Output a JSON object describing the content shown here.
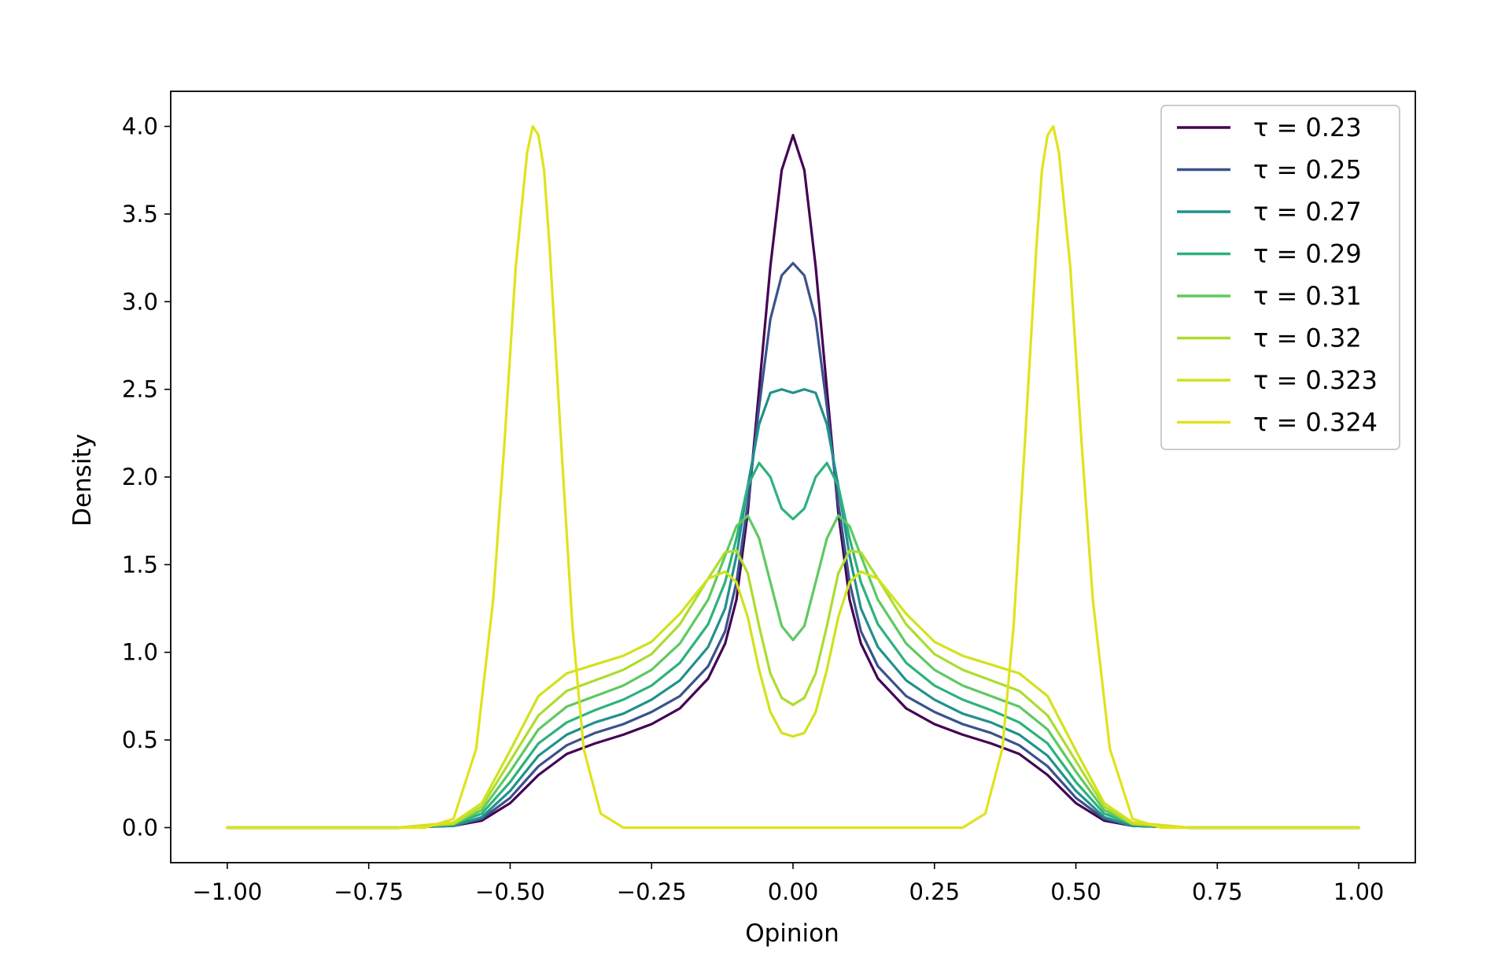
{
  "chart_data": {
    "type": "line",
    "xlabel": "Opinion",
    "ylabel": "Density",
    "xlim": [
      -1.1,
      1.1
    ],
    "ylim": [
      -0.2,
      4.2
    ],
    "xticks": [
      -1.0,
      -0.75,
      -0.5,
      -0.25,
      0.0,
      0.25,
      0.5,
      0.75,
      1.0
    ],
    "xtick_labels": [
      "−1.00",
      "−0.75",
      "−0.50",
      "−0.25",
      "0.00",
      "0.25",
      "0.50",
      "0.75",
      "1.00"
    ],
    "yticks": [
      0.0,
      0.5,
      1.0,
      1.5,
      2.0,
      2.5,
      3.0,
      3.5,
      4.0
    ],
    "ytick_labels": [
      "0.0",
      "0.5",
      "1.0",
      "1.5",
      "2.0",
      "2.5",
      "3.0",
      "3.5",
      "4.0"
    ],
    "grid": false,
    "legend_position": "top-right",
    "series": [
      {
        "name": "τ = 0.23",
        "color": "#440154",
        "x": [
          -1.0,
          -0.7,
          -0.6,
          -0.55,
          -0.5,
          -0.45,
          -0.4,
          -0.35,
          -0.3,
          -0.25,
          -0.2,
          -0.15,
          -0.12,
          -0.1,
          -0.08,
          -0.06,
          -0.04,
          -0.02,
          0.0,
          0.02,
          0.04,
          0.06,
          0.08,
          0.1,
          0.12,
          0.15,
          0.2,
          0.25,
          0.3,
          0.35,
          0.4,
          0.45,
          0.5,
          0.55,
          0.6,
          0.7,
          1.0
        ],
        "y": [
          0.0,
          0.0,
          0.01,
          0.04,
          0.14,
          0.3,
          0.42,
          0.48,
          0.53,
          0.59,
          0.68,
          0.85,
          1.05,
          1.3,
          1.8,
          2.5,
          3.2,
          3.75,
          3.95,
          3.75,
          3.2,
          2.5,
          1.8,
          1.3,
          1.05,
          0.85,
          0.68,
          0.59,
          0.53,
          0.48,
          0.42,
          0.3,
          0.14,
          0.04,
          0.01,
          0.0,
          0.0
        ]
      },
      {
        "name": "τ = 0.25",
        "color": "#3b528b",
        "x": [
          -1.0,
          -0.7,
          -0.6,
          -0.55,
          -0.5,
          -0.45,
          -0.4,
          -0.35,
          -0.3,
          -0.25,
          -0.2,
          -0.15,
          -0.12,
          -0.1,
          -0.08,
          -0.06,
          -0.04,
          -0.02,
          0.0,
          0.02,
          0.04,
          0.06,
          0.08,
          0.1,
          0.12,
          0.15,
          0.2,
          0.25,
          0.3,
          0.35,
          0.4,
          0.45,
          0.5,
          0.55,
          0.6,
          0.7,
          1.0
        ],
        "y": [
          0.0,
          0.0,
          0.01,
          0.05,
          0.17,
          0.35,
          0.47,
          0.54,
          0.59,
          0.66,
          0.75,
          0.92,
          1.12,
          1.4,
          1.85,
          2.4,
          2.9,
          3.15,
          3.22,
          3.15,
          2.9,
          2.4,
          1.85,
          1.4,
          1.12,
          0.92,
          0.75,
          0.66,
          0.59,
          0.54,
          0.47,
          0.35,
          0.17,
          0.05,
          0.01,
          0.0,
          0.0
        ]
      },
      {
        "name": "τ = 0.27",
        "color": "#21918c",
        "x": [
          -1.0,
          -0.7,
          -0.6,
          -0.55,
          -0.5,
          -0.45,
          -0.4,
          -0.35,
          -0.3,
          -0.25,
          -0.2,
          -0.15,
          -0.12,
          -0.1,
          -0.08,
          -0.06,
          -0.04,
          -0.02,
          0.0,
          0.02,
          0.04,
          0.06,
          0.08,
          0.1,
          0.12,
          0.15,
          0.2,
          0.25,
          0.3,
          0.35,
          0.4,
          0.45,
          0.5,
          0.55,
          0.6,
          0.7,
          1.0
        ],
        "y": [
          0.0,
          0.0,
          0.01,
          0.06,
          0.21,
          0.41,
          0.53,
          0.6,
          0.65,
          0.73,
          0.84,
          1.03,
          1.25,
          1.55,
          1.95,
          2.3,
          2.48,
          2.5,
          2.48,
          2.5,
          2.48,
          2.3,
          1.95,
          1.55,
          1.25,
          1.03,
          0.84,
          0.73,
          0.65,
          0.6,
          0.53,
          0.41,
          0.21,
          0.06,
          0.01,
          0.0,
          0.0
        ]
      },
      {
        "name": "τ = 0.29",
        "color": "#2db27d",
        "x": [
          -1.0,
          -0.7,
          -0.6,
          -0.55,
          -0.5,
          -0.45,
          -0.4,
          -0.35,
          -0.3,
          -0.25,
          -0.2,
          -0.15,
          -0.12,
          -0.1,
          -0.08,
          -0.06,
          -0.04,
          -0.02,
          0.0,
          0.02,
          0.04,
          0.06,
          0.08,
          0.1,
          0.12,
          0.15,
          0.2,
          0.25,
          0.3,
          0.35,
          0.4,
          0.45,
          0.5,
          0.55,
          0.6,
          0.7,
          1.0
        ],
        "y": [
          0.0,
          0.0,
          0.02,
          0.08,
          0.26,
          0.48,
          0.6,
          0.67,
          0.73,
          0.81,
          0.94,
          1.16,
          1.4,
          1.65,
          1.95,
          2.08,
          2.0,
          1.82,
          1.76,
          1.82,
          2.0,
          2.08,
          1.95,
          1.65,
          1.4,
          1.16,
          0.94,
          0.81,
          0.73,
          0.67,
          0.6,
          0.48,
          0.26,
          0.08,
          0.02,
          0.0,
          0.0
        ]
      },
      {
        "name": "τ = 0.31",
        "color": "#5ec962",
        "x": [
          -1.0,
          -0.7,
          -0.6,
          -0.55,
          -0.5,
          -0.45,
          -0.4,
          -0.35,
          -0.3,
          -0.25,
          -0.2,
          -0.15,
          -0.12,
          -0.1,
          -0.08,
          -0.06,
          -0.04,
          -0.02,
          0.0,
          0.02,
          0.04,
          0.06,
          0.08,
          0.1,
          0.12,
          0.15,
          0.2,
          0.25,
          0.3,
          0.35,
          0.4,
          0.45,
          0.5,
          0.55,
          0.6,
          0.7,
          1.0
        ],
        "y": [
          0.0,
          0.0,
          0.02,
          0.1,
          0.32,
          0.56,
          0.69,
          0.75,
          0.81,
          0.9,
          1.05,
          1.3,
          1.55,
          1.72,
          1.78,
          1.65,
          1.4,
          1.15,
          1.07,
          1.15,
          1.4,
          1.65,
          1.78,
          1.72,
          1.55,
          1.3,
          1.05,
          0.9,
          0.81,
          0.75,
          0.69,
          0.56,
          0.32,
          0.1,
          0.02,
          0.0,
          0.0
        ]
      },
      {
        "name": "τ = 0.32",
        "color": "#addc30",
        "x": [
          -1.0,
          -0.7,
          -0.6,
          -0.55,
          -0.5,
          -0.45,
          -0.4,
          -0.35,
          -0.3,
          -0.25,
          -0.2,
          -0.15,
          -0.12,
          -0.1,
          -0.08,
          -0.06,
          -0.04,
          -0.02,
          0.0,
          0.02,
          0.04,
          0.06,
          0.08,
          0.1,
          0.12,
          0.15,
          0.2,
          0.25,
          0.3,
          0.35,
          0.4,
          0.45,
          0.5,
          0.55,
          0.6,
          0.7,
          1.0
        ],
        "y": [
          0.0,
          0.0,
          0.02,
          0.12,
          0.38,
          0.64,
          0.78,
          0.84,
          0.9,
          0.99,
          1.16,
          1.42,
          1.57,
          1.58,
          1.45,
          1.15,
          0.88,
          0.74,
          0.7,
          0.74,
          0.88,
          1.15,
          1.45,
          1.58,
          1.57,
          1.42,
          1.16,
          0.99,
          0.9,
          0.84,
          0.78,
          0.64,
          0.38,
          0.12,
          0.02,
          0.0,
          0.0
        ]
      },
      {
        "name": "τ = 0.323",
        "color": "#d2e21b",
        "x": [
          -1.0,
          -0.7,
          -0.6,
          -0.55,
          -0.5,
          -0.45,
          -0.4,
          -0.35,
          -0.3,
          -0.25,
          -0.2,
          -0.15,
          -0.12,
          -0.1,
          -0.08,
          -0.06,
          -0.04,
          -0.02,
          0.0,
          0.02,
          0.04,
          0.06,
          0.08,
          0.1,
          0.12,
          0.15,
          0.2,
          0.25,
          0.3,
          0.35,
          0.4,
          0.45,
          0.5,
          0.55,
          0.6,
          0.7,
          1.0
        ],
        "y": [
          0.0,
          0.0,
          0.03,
          0.14,
          0.44,
          0.75,
          0.88,
          0.93,
          0.98,
          1.06,
          1.22,
          1.42,
          1.46,
          1.4,
          1.2,
          0.9,
          0.66,
          0.54,
          0.52,
          0.54,
          0.66,
          0.9,
          1.2,
          1.4,
          1.46,
          1.42,
          1.22,
          1.06,
          0.98,
          0.93,
          0.88,
          0.75,
          0.44,
          0.14,
          0.03,
          0.0,
          0.0
        ]
      },
      {
        "name": "τ = 0.324",
        "color": "#e0e31c",
        "x": [
          -1.0,
          -0.65,
          -0.6,
          -0.56,
          -0.53,
          -0.51,
          -0.49,
          -0.47,
          -0.46,
          -0.45,
          -0.44,
          -0.43,
          -0.41,
          -0.39,
          -0.37,
          -0.34,
          -0.3,
          0.0,
          0.3,
          0.34,
          0.37,
          0.39,
          0.41,
          0.43,
          0.44,
          0.45,
          0.46,
          0.47,
          0.49,
          0.51,
          0.53,
          0.56,
          0.6,
          0.65,
          1.0
        ],
        "y": [
          0.0,
          0.0,
          0.05,
          0.45,
          1.3,
          2.2,
          3.2,
          3.85,
          4.0,
          3.95,
          3.75,
          3.3,
          2.2,
          1.15,
          0.45,
          0.08,
          0.0,
          0.0,
          0.0,
          0.08,
          0.45,
          1.15,
          2.2,
          3.3,
          3.75,
          3.95,
          4.0,
          3.85,
          3.2,
          2.2,
          1.3,
          0.45,
          0.05,
          0.0,
          0.0
        ]
      }
    ]
  }
}
